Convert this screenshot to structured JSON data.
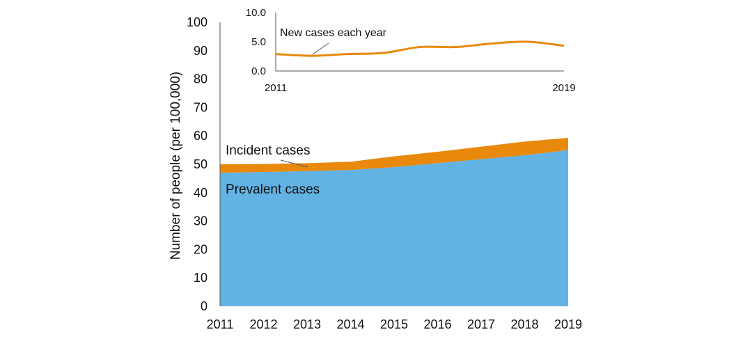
{
  "colors": {
    "prevalent": "#62B2E3",
    "incident": "#E8890C",
    "axis": "#555555",
    "leader": "#555555"
  },
  "chart_data": [
    {
      "type": "area",
      "stacked": true,
      "ylabel": "Number of people (per 100,000)",
      "ylim": [
        0,
        100
      ],
      "yticks": [
        0,
        10,
        20,
        30,
        40,
        50,
        60,
        70,
        80,
        90,
        100
      ],
      "categories": [
        "2011",
        "2012",
        "2013",
        "2014",
        "2015",
        "2016",
        "2017",
        "2018",
        "2019"
      ],
      "series": [
        {
          "name": "Prevalent cases",
          "values": [
            47,
            47.3,
            47.6,
            48,
            49,
            50.4,
            51.8,
            53.2,
            55
          ]
        },
        {
          "name": "Incident cases",
          "values": [
            3,
            2.8,
            2.8,
            2.9,
            3.8,
            4,
            4.4,
            4.8,
            4.3
          ]
        }
      ],
      "grid": false,
      "legend": "none"
    },
    {
      "type": "line",
      "inset": true,
      "x": [
        "2011",
        "2012",
        "2013",
        "2014",
        "2015",
        "2016",
        "2017",
        "2018",
        "2019"
      ],
      "xtick_labels": [
        "2011",
        "2019"
      ],
      "ylim": [
        0,
        10
      ],
      "ytick_labels": [
        "0.0",
        "5.0",
        "10.0"
      ],
      "series": [
        {
          "name": "New cases each year",
          "values": [
            2.9,
            2.6,
            2.9,
            3.1,
            4.1,
            4.1,
            4.7,
            5.0,
            4.3
          ]
        }
      ],
      "grid": false
    }
  ]
}
